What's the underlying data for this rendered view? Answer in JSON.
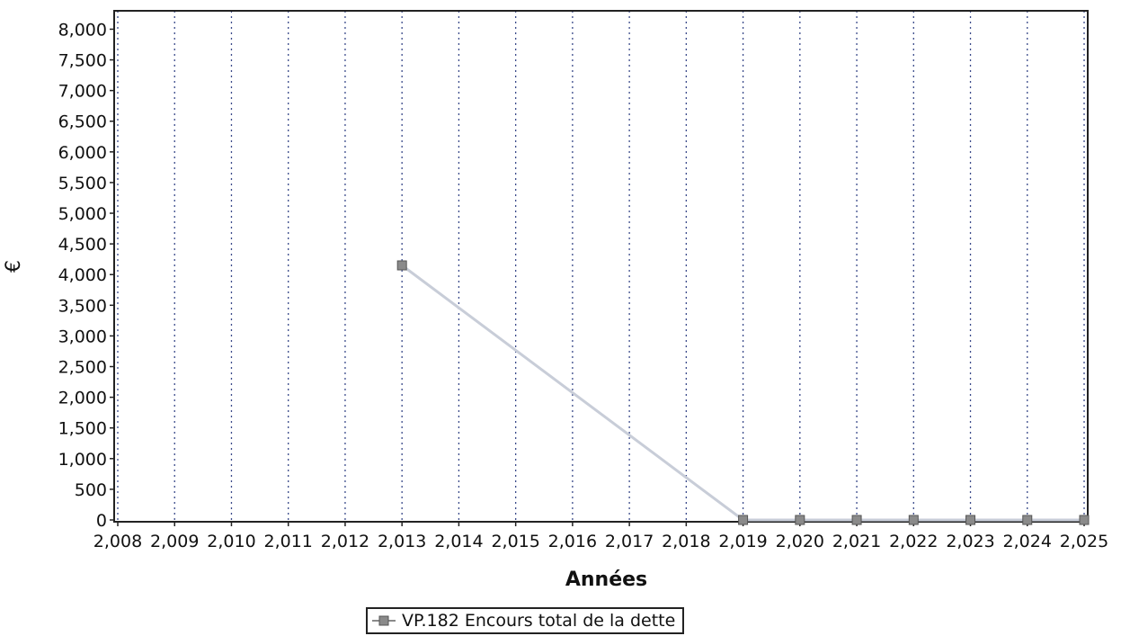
{
  "chart_data": {
    "type": "line",
    "title": "",
    "xlabel": "Années",
    "ylabel": "€",
    "x_tick_labels": [
      "2,008",
      "2,009",
      "2,010",
      "2,011",
      "2,012",
      "2,013",
      "2,014",
      "2,015",
      "2,016",
      "2,017",
      "2,018",
      "2,019",
      "2,020",
      "2,021",
      "2,022",
      "2,023",
      "2,024",
      "2,025"
    ],
    "y_tick_labels": [
      "0",
      "500",
      "1,000",
      "1,500",
      "2,000",
      "2,500",
      "3,000",
      "3,500",
      "4,000",
      "4,500",
      "5,000",
      "5,500",
      "6,000",
      "6,500",
      "7,000",
      "7,500",
      "8,000"
    ],
    "xlim": [
      2008,
      2025
    ],
    "ylim": [
      0,
      8300
    ],
    "grid": "vertical-dotted",
    "legend_position": "bottom-center",
    "series": [
      {
        "name": "VP.182 Encours total de la dette",
        "color": "#c8cdd8",
        "marker_color": "#8a8a8a",
        "x": [
          2013,
          2019,
          2020,
          2021,
          2022,
          2023,
          2024,
          2025
        ],
        "y": [
          4150,
          0,
          0,
          0,
          0,
          0,
          0,
          0
        ]
      }
    ]
  }
}
